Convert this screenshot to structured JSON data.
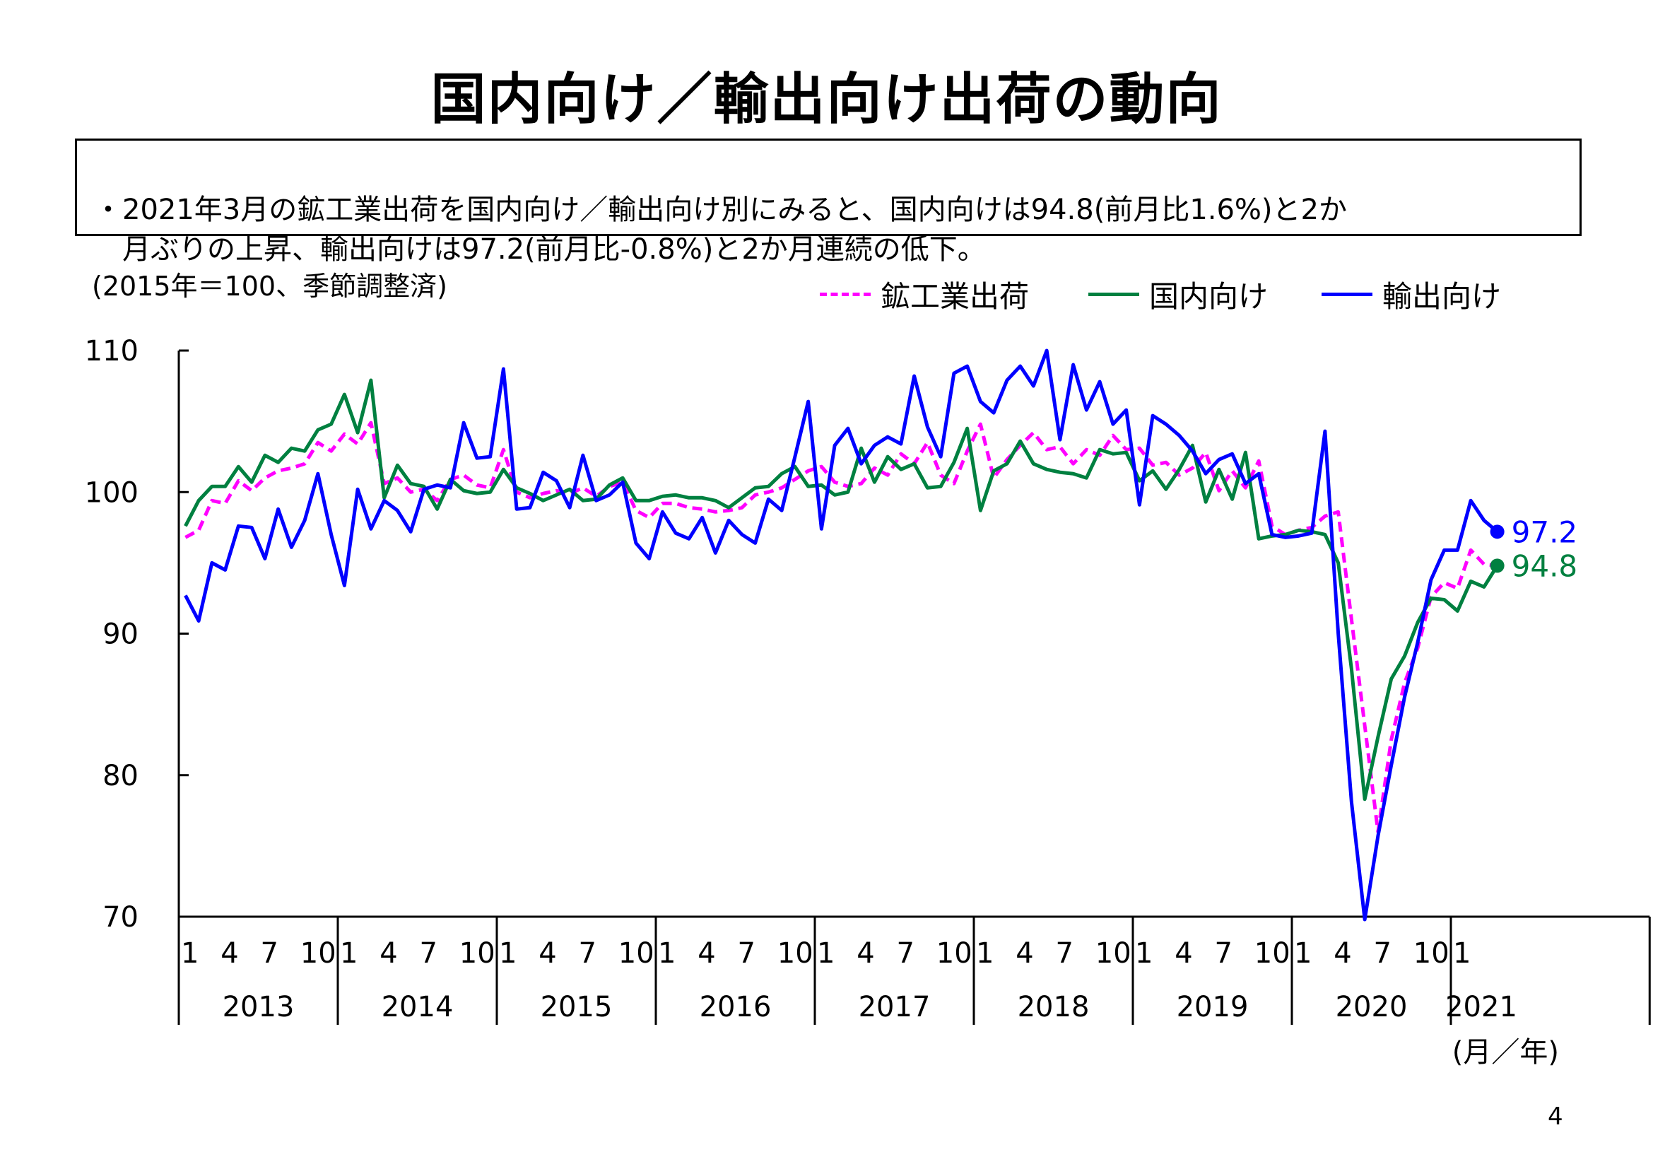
{
  "page": {
    "title": "国内向け／輸出向け出荷の動向",
    "summary": "・2021年3月の鉱工業出荷を国内向け／輸出向け別にみると、国内向けは94.8(前月比1.6%)と2か\n　月ぶりの上昇、輸出向けは97.2(前月比-0.8%)と2か月連続の低下。",
    "page_number": "4"
  },
  "chart_data": {
    "type": "line",
    "unit_note": "(2015年＝100、季節調整済)",
    "x_unit_label": "(月／年)",
    "ylim": [
      70,
      110
    ],
    "y_ticks": [
      70,
      80,
      90,
      100,
      110
    ],
    "x_start": "2013-01",
    "month_tick_labels": [
      "1",
      "4",
      "7",
      "10"
    ],
    "years": [
      "2013",
      "2014",
      "2015",
      "2016",
      "2017",
      "2018",
      "2019",
      "2020",
      "2021"
    ],
    "legend_placement": "top-right",
    "grid": false,
    "series": [
      {
        "name": "鉱工業出荷",
        "color": "#FF00FF",
        "dash": true,
        "values": [
          96.8,
          97.3,
          99.4,
          99.2,
          100.8,
          100.1,
          101.0,
          101.5,
          101.7,
          102.0,
          103.5,
          102.9,
          104.1,
          103.4,
          104.9,
          100.6,
          101.0,
          100.0,
          100.2,
          99.4,
          100.9,
          101.2,
          100.5,
          100.3,
          103.0,
          100.0,
          99.6,
          99.9,
          100.1,
          99.9,
          100.3,
          99.7,
          100.4,
          100.7,
          98.7,
          98.2,
          99.2,
          99.2,
          98.9,
          98.8,
          98.6,
          98.7,
          98.9,
          99.8,
          100.0,
          100.3,
          100.9,
          101.5,
          101.8,
          100.7,
          100.4,
          100.6,
          101.7,
          101.2,
          102.7,
          102.0,
          103.5,
          101.2,
          100.6,
          102.9,
          104.8,
          101.0,
          102.3,
          103.3,
          104.2,
          103.0,
          103.2,
          102.0,
          103.0,
          102.6,
          104.0,
          103.0,
          103.1,
          101.9,
          102.1,
          101.2,
          101.7,
          102.8,
          100.1,
          101.5,
          100.3,
          102.2,
          97.6,
          97.0,
          97.3,
          97.5,
          98.3,
          98.6,
          91.0,
          83.5,
          76.0,
          82.5,
          86.5,
          89.0,
          92.6,
          93.6,
          93.2,
          95.9,
          94.9,
          94.8
        ]
      },
      {
        "name": "国内向け",
        "color": "#008040",
        "dash": false,
        "values": [
          97.6,
          99.4,
          100.4,
          100.4,
          101.8,
          100.7,
          102.6,
          102.1,
          103.1,
          102.9,
          104.4,
          104.8,
          106.9,
          104.2,
          107.9,
          99.6,
          101.9,
          100.6,
          100.4,
          98.8,
          100.9,
          100.1,
          99.9,
          100.0,
          101.6,
          100.3,
          99.9,
          99.4,
          99.8,
          100.2,
          99.4,
          99.5,
          100.5,
          101.0,
          99.4,
          99.4,
          99.7,
          99.8,
          99.6,
          99.6,
          99.4,
          98.9,
          99.6,
          100.3,
          100.4,
          101.3,
          101.8,
          100.4,
          100.5,
          99.8,
          100.0,
          103.1,
          100.7,
          102.5,
          101.6,
          102.0,
          100.3,
          100.4,
          102.1,
          104.5,
          98.7,
          101.5,
          102.0,
          103.6,
          102.0,
          101.6,
          101.4,
          101.3,
          101.0,
          103.0,
          102.7,
          102.8,
          100.8,
          101.5,
          100.2,
          101.6,
          103.3,
          99.3,
          101.6,
          99.5,
          102.8,
          96.7,
          96.9,
          97.0,
          97.3,
          97.2,
          97.0,
          95.0,
          87.5,
          78.3,
          82.7,
          86.8,
          88.4,
          90.8,
          92.5,
          92.4,
          91.6,
          93.7,
          93.3,
          94.8
        ]
      },
      {
        "name": "輸出向け",
        "color": "#0000FF",
        "dash": false,
        "values": [
          92.7,
          90.9,
          95.0,
          94.5,
          97.6,
          97.5,
          95.3,
          98.8,
          96.1,
          98.0,
          101.3,
          97.0,
          93.4,
          100.2,
          97.4,
          99.4,
          98.7,
          97.2,
          100.2,
          100.5,
          100.3,
          104.9,
          102.4,
          102.5,
          108.7,
          98.8,
          98.9,
          101.4,
          100.8,
          98.9,
          102.6,
          99.4,
          99.8,
          100.7,
          96.4,
          95.3,
          98.6,
          97.1,
          96.7,
          98.2,
          95.7,
          98.0,
          97.0,
          96.4,
          99.5,
          98.7,
          102.5,
          106.4,
          97.4,
          103.3,
          104.5,
          102.0,
          103.3,
          103.9,
          103.4,
          108.2,
          104.6,
          102.5,
          108.4,
          108.9,
          106.4,
          105.6,
          107.9,
          108.9,
          107.5,
          110.0,
          103.7,
          109.0,
          105.8,
          107.8,
          104.8,
          105.8,
          99.1,
          105.4,
          104.8,
          104.0,
          102.9,
          101.3,
          102.3,
          102.7,
          100.6,
          101.3,
          97.0,
          96.8,
          96.9,
          97.1,
          104.3,
          90.0,
          78.1,
          69.8,
          75.7,
          80.7,
          85.5,
          89.4,
          93.8,
          95.9,
          95.9,
          99.4,
          98.0,
          97.2
        ]
      }
    ],
    "end_labels": [
      "97.2",
      "94.8"
    ]
  }
}
